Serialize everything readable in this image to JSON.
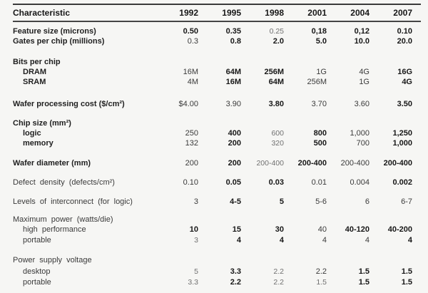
{
  "table": {
    "title_column": "Characteristic",
    "years": [
      "1992",
      "1995",
      "1998",
      "2001",
      "2004",
      "2007"
    ],
    "rows": [
      {
        "label": "Feature size (microns)",
        "values": [
          "0.50",
          "0.35",
          "0.25",
          "0,18",
          "0,12",
          "0.10"
        ]
      },
      {
        "label": "Gates per chip (millions)",
        "values": [
          "0.3",
          "0.8",
          "2.0",
          "5.0",
          "10.0",
          "20.0"
        ]
      },
      {
        "label": "Bits per chip",
        "values": []
      },
      {
        "label": "DRAM",
        "values": [
          "16M",
          "64M",
          "256M",
          "1G",
          "4G",
          "16G"
        ]
      },
      {
        "label": "SRAM",
        "values": [
          "4M",
          "16M",
          "64M",
          "256M",
          "1G",
          "4G"
        ]
      },
      {
        "label": "Wafer processing cost ($/cm²)",
        "values": [
          "$4.00",
          "3.90",
          "3.80",
          "3.70",
          "3.60",
          "3.50"
        ]
      },
      {
        "label": "Chip size (mm²)",
        "values": []
      },
      {
        "label": "logic",
        "values": [
          "250",
          "400",
          "600",
          "800",
          "1,000",
          "1,250"
        ]
      },
      {
        "label": "memory",
        "values": [
          "132",
          "200",
          "320",
          "500",
          "700",
          "1,000"
        ]
      },
      {
        "label": "Wafer diameter (mm)",
        "values": [
          "200",
          "200",
          "200-400",
          "200-400",
          "200-400",
          "200-400"
        ]
      },
      {
        "label": "Defect density (defects/cm²)",
        "values": [
          "0.10",
          "0.05",
          "0.03",
          "0.01",
          "0.004",
          "0.002"
        ]
      },
      {
        "label": "Levels of interconnect (for logic)",
        "values": [
          "3",
          "4-5",
          "5",
          "5-6",
          "6",
          "6-7"
        ]
      },
      {
        "label": "Maximum power (watts/die)",
        "values": []
      },
      {
        "label": "high performance",
        "values": [
          "10",
          "15",
          "30",
          "40",
          "40-120",
          "40-200"
        ]
      },
      {
        "label": "portable",
        "values": [
          "3",
          "4",
          "4",
          "4",
          "4",
          "4"
        ]
      },
      {
        "label": "Power supply voltage",
        "values": []
      },
      {
        "label": "desktop",
        "values": [
          "5",
          "3.3",
          "2.2",
          "2.2",
          "1.5",
          "1.5"
        ]
      },
      {
        "label": "portable",
        "values": [
          "3.3",
          "2.2",
          "2.2",
          "1.5",
          "1.5",
          "1.5"
        ]
      }
    ],
    "ink_color": "#1f1f1f",
    "paper_color": "#f6f6f4"
  }
}
